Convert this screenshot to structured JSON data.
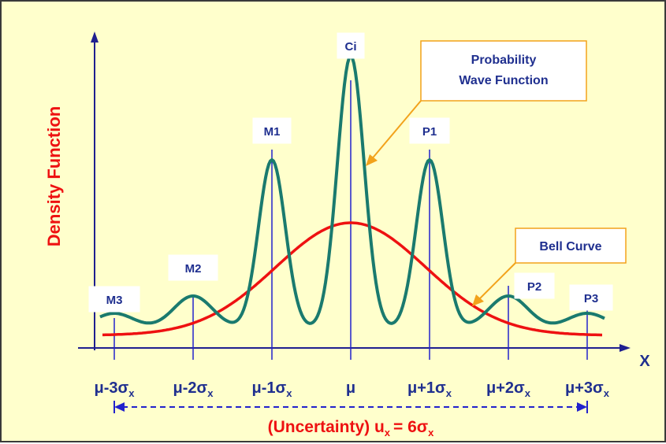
{
  "diagram": {
    "y_axis_label": "Density Function",
    "x_axis_label": "X",
    "callouts": {
      "wave": "Probability Wave Function",
      "wave_lines": [
        "Probability",
        "Wave Function"
      ],
      "bell": "Bell Curve"
    },
    "peaks": [
      {
        "label": "M3",
        "position": -3
      },
      {
        "label": "M2",
        "position": -2
      },
      {
        "label": "M1",
        "position": -1
      },
      {
        "label": "Ci",
        "position": 0
      },
      {
        "label": "P1",
        "position": 1
      },
      {
        "label": "P2",
        "position": 2
      },
      {
        "label": "P3",
        "position": 3
      }
    ],
    "ticks": [
      {
        "base": "μ-3σ",
        "sub": "x"
      },
      {
        "base": "μ-2σ",
        "sub": "x"
      },
      {
        "base": "μ-1σ",
        "sub": "x"
      },
      {
        "base": "μ",
        "sub": ""
      },
      {
        "base": "μ+1σ",
        "sub": "x"
      },
      {
        "base": "μ+2σ",
        "sub": "x"
      },
      {
        "base": "μ+3σ",
        "sub": "x"
      }
    ],
    "uncertainty": {
      "prefix": "(Uncertainty) u",
      "sub1": "x",
      "middle": "= 6σ",
      "sub2": "x"
    },
    "colors": {
      "background": "#ffffcc",
      "axis": "#1f1f8f",
      "bell_curve": "#ee1111",
      "wave": "#1a7a6e",
      "label_text": "#1f2f8f",
      "y_label": "#ee1111",
      "callout_border": "#f2a21b",
      "uncertainty_text": "#ee1111",
      "dashed_arrow": "#2222cc"
    }
  }
}
